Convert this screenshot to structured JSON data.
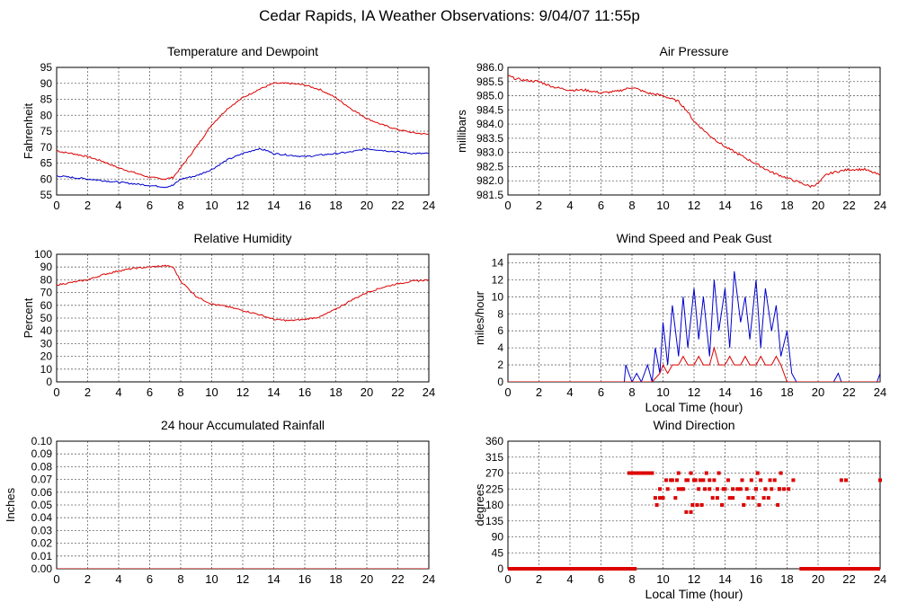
{
  "page": {
    "title": "Cedar Rapids, IA Weather Observations: 9/04/07 11:55p"
  },
  "colors": {
    "red": "#dd0000",
    "blue": "#0000cc",
    "grid": "#666666"
  },
  "chart_data": [
    {
      "id": "temp",
      "type": "line",
      "title": "Temperature and Dewpoint",
      "xlabel": "",
      "ylabel": "Fahrenheit",
      "xlim": [
        0,
        24
      ],
      "ylim": [
        55,
        95
      ],
      "xticks": [
        0,
        2,
        4,
        6,
        8,
        10,
        12,
        14,
        16,
        18,
        20,
        22,
        24
      ],
      "yticks": [
        55,
        60,
        65,
        70,
        75,
        80,
        85,
        90,
        95
      ],
      "tick_decimals": 0,
      "grid": true,
      "series": [
        {
          "color": "red",
          "noise": 0.25,
          "x": [
            0,
            0.3,
            1,
            2,
            3,
            4,
            5,
            6,
            7,
            7.5,
            8,
            9,
            10,
            11,
            12,
            13,
            14,
            15,
            16,
            17,
            18,
            19,
            20,
            21,
            22,
            23,
            24
          ],
          "y": [
            69,
            68.5,
            68,
            67,
            65.5,
            63.5,
            62,
            60.5,
            60,
            60.5,
            63.5,
            70,
            77,
            82,
            85.5,
            88,
            90,
            90,
            89.5,
            88,
            85.5,
            82,
            79,
            77,
            75.5,
            74.5,
            74
          ]
        },
        {
          "color": "blue",
          "noise": 0.25,
          "x": [
            0,
            1,
            2,
            3,
            4,
            5,
            6,
            7,
            7.5,
            8,
            9,
            10,
            11,
            12,
            13,
            13.5,
            14,
            15,
            16,
            17,
            18,
            19,
            20,
            21,
            22,
            23,
            24
          ],
          "y": [
            61,
            60.5,
            60,
            59.5,
            59,
            58.5,
            58,
            57.5,
            58,
            60,
            61,
            63,
            66,
            68,
            69.5,
            69,
            68,
            67.5,
            67,
            67.5,
            68,
            68.5,
            69.5,
            69,
            68.5,
            68,
            68
          ]
        }
      ]
    },
    {
      "id": "pressure",
      "type": "line",
      "title": "Air Pressure",
      "xlabel": "",
      "ylabel": "millibars",
      "xlim": [
        0,
        24
      ],
      "ylim": [
        981.5,
        986.0
      ],
      "xticks": [
        0,
        2,
        4,
        6,
        8,
        10,
        12,
        14,
        16,
        18,
        20,
        22,
        24
      ],
      "yticks": [
        981.5,
        982.0,
        982.5,
        983.0,
        983.5,
        984.0,
        984.5,
        985.0,
        985.5,
        986.0
      ],
      "tick_decimals": 1,
      "grid": true,
      "series": [
        {
          "color": "red",
          "noise": 0.04,
          "x": [
            0,
            0.5,
            1,
            2,
            3,
            4,
            5,
            6,
            7,
            8,
            9,
            10,
            11,
            11.5,
            12,
            13,
            14,
            15,
            16,
            17,
            18,
            19,
            19.5,
            20,
            20.5,
            21,
            22,
            23,
            24
          ],
          "y": [
            985.7,
            985.6,
            985.55,
            985.5,
            985.3,
            985.2,
            985.2,
            985.1,
            985.15,
            985.3,
            985.1,
            985.0,
            984.8,
            984.5,
            984.1,
            983.6,
            983.2,
            982.9,
            982.6,
            982.3,
            982.1,
            981.9,
            981.8,
            981.9,
            982.2,
            982.3,
            982.4,
            982.4,
            982.2
          ]
        }
      ]
    },
    {
      "id": "wind",
      "type": "line",
      "title": "Wind Speed and Peak Gust",
      "xlabel": "Local Time (hour)",
      "ylabel": "miles/hour",
      "xlim": [
        0,
        24
      ],
      "ylim": [
        0,
        15
      ],
      "xticks": [
        0,
        2,
        4,
        6,
        8,
        10,
        12,
        14,
        16,
        18,
        20,
        22,
        24
      ],
      "yticks": [
        0,
        2,
        4,
        6,
        8,
        10,
        12,
        14
      ],
      "tick_decimals": 0,
      "grid": true,
      "series": [
        {
          "color": "blue",
          "x": [
            0,
            7.5,
            7.6,
            7.8,
            8,
            8.3,
            8.6,
            9,
            9.3,
            9.5,
            9.8,
            10,
            10.3,
            10.6,
            11,
            11.3,
            11.6,
            12,
            12.3,
            12.6,
            13,
            13.3,
            13.6,
            14,
            14.3,
            14.6,
            15,
            15.3,
            15.6,
            16,
            16.3,
            16.6,
            17,
            17.3,
            17.6,
            18,
            18.3,
            18.6,
            19,
            21,
            21.3,
            21.5,
            23.8,
            24
          ],
          "y": [
            0,
            0,
            2,
            1,
            0,
            1,
            0,
            2,
            0,
            4,
            1,
            7,
            2,
            9,
            3,
            10,
            4,
            11,
            5,
            10,
            3,
            12,
            6,
            11,
            4,
            13,
            7,
            10,
            5,
            12,
            4,
            11,
            6,
            9,
            3,
            6,
            1,
            0,
            0,
            0,
            1,
            0,
            0,
            1
          ]
        },
        {
          "color": "red",
          "x": [
            0,
            9.3,
            9.8,
            10,
            10.3,
            10.6,
            11,
            11.3,
            11.6,
            12,
            12.3,
            12.6,
            13,
            13.3,
            13.6,
            14,
            14.3,
            14.6,
            15,
            15.3,
            15.6,
            16,
            16.3,
            16.6,
            17,
            17.3,
            17.6,
            18,
            24
          ],
          "y": [
            0,
            0,
            1,
            2,
            1,
            2,
            2,
            3,
            2,
            2,
            3,
            2,
            2,
            4,
            2,
            2,
            3,
            2,
            2,
            3,
            2,
            2,
            3,
            2,
            2,
            3,
            2,
            0,
            0
          ]
        }
      ]
    },
    {
      "id": "humidity",
      "type": "line",
      "title": "Relative Humidity",
      "xlabel": "",
      "ylabel": "Percent",
      "xlim": [
        0,
        24
      ],
      "ylim": [
        0,
        100
      ],
      "xticks": [
        0,
        2,
        4,
        6,
        8,
        10,
        12,
        14,
        16,
        18,
        20,
        22,
        24
      ],
      "yticks": [
        0,
        10,
        20,
        30,
        40,
        50,
        60,
        70,
        80,
        90,
        100
      ],
      "tick_decimals": 0,
      "grid": true,
      "series": [
        {
          "color": "red",
          "noise": 0.6,
          "x": [
            0,
            0.5,
            1,
            2,
            3,
            4,
            5,
            6,
            7,
            7.5,
            8,
            9,
            10,
            11,
            12,
            13,
            14,
            15,
            16,
            17,
            18,
            19,
            20,
            21,
            22,
            23,
            24
          ],
          "y": [
            76,
            77,
            78,
            80,
            84,
            87,
            89,
            90,
            91,
            90,
            79,
            67,
            61,
            59,
            56,
            53,
            49,
            48,
            49,
            51,
            57,
            64,
            70,
            74,
            77,
            79,
            80
          ]
        }
      ]
    },
    {
      "id": "rain",
      "type": "line",
      "title": "24 hour Accumulated Rainfall",
      "xlabel": "",
      "ylabel": "Inches",
      "xlim": [
        0,
        24
      ],
      "ylim": [
        0,
        0.1
      ],
      "xticks": [
        0,
        2,
        4,
        6,
        8,
        10,
        12,
        14,
        16,
        18,
        20,
        22,
        24
      ],
      "yticks": [
        0.0,
        0.01,
        0.02,
        0.03,
        0.04,
        0.05,
        0.06,
        0.07,
        0.08,
        0.09,
        0.1
      ],
      "tick_decimals": 2,
      "grid": true,
      "series": [
        {
          "color": "red",
          "x": [
            0,
            24
          ],
          "y": [
            0,
            0
          ]
        }
      ]
    },
    {
      "id": "direction",
      "type": "scatter",
      "title": "Wind Direction",
      "xlabel": "Local Time (hour)",
      "ylabel": "degrees",
      "xlim": [
        0,
        24
      ],
      "ylim": [
        0,
        360
      ],
      "xticks": [
        0,
        2,
        4,
        6,
        8,
        10,
        12,
        14,
        16,
        18,
        20,
        22,
        24
      ],
      "yticks": [
        0,
        45,
        90,
        135,
        180,
        225,
        270,
        315,
        360
      ],
      "tick_decimals": 0,
      "grid": true,
      "series": [
        {
          "color": "red",
          "x": [
            9.3,
            9.5,
            9.8,
            9.6,
            10,
            10.3,
            10.6,
            10.9,
            11.2,
            11.5,
            11.8,
            12.1,
            12.4,
            12.7,
            13,
            13.3,
            13.6,
            13.9,
            14.2,
            14.5,
            14.8,
            15.1,
            15.4,
            15.7,
            16,
            16.3,
            16.6,
            16.9,
            17.2,
            17.5,
            17.8,
            18.1,
            18.4,
            10.2,
            10.5,
            11,
            11.3,
            11.6,
            12,
            12.3,
            12.6,
            13,
            13.5,
            14,
            14.5,
            15,
            15.5,
            16,
            16.5,
            17,
            17.5,
            10.8,
            11.9,
            12.2,
            13.2,
            13.8,
            14.3,
            15.2,
            15.8,
            16.2,
            16.8,
            17.4,
            11.5,
            11.8,
            12.5,
            9.8,
            11,
            12.8,
            13.5,
            16.1,
            17.6,
            21.5,
            21.8,
            24
          ],
          "y": [
            270,
            200,
            200,
            180,
            200,
            225,
            250,
            250,
            225,
            250,
            270,
            250,
            250,
            225,
            250,
            250,
            270,
            225,
            250,
            225,
            225,
            250,
            225,
            250,
            225,
            250,
            225,
            250,
            250,
            225,
            225,
            225,
            250,
            250,
            250,
            225,
            225,
            250,
            250,
            225,
            250,
            225,
            200,
            225,
            200,
            225,
            200,
            225,
            200,
            225,
            225,
            200,
            180,
            180,
            200,
            180,
            200,
            180,
            200,
            180,
            200,
            180,
            160,
            160,
            180,
            225,
            270,
            270,
            225,
            270,
            270,
            250,
            250,
            250
          ]
        }
      ],
      "bands": [
        {
          "color": "red",
          "x": [
            0,
            8.3
          ],
          "y": 0
        },
        {
          "color": "red",
          "x": [
            7.7,
            9.3
          ],
          "y": 270
        },
        {
          "color": "red",
          "x": [
            18.8,
            24
          ],
          "y": 0
        }
      ]
    }
  ]
}
